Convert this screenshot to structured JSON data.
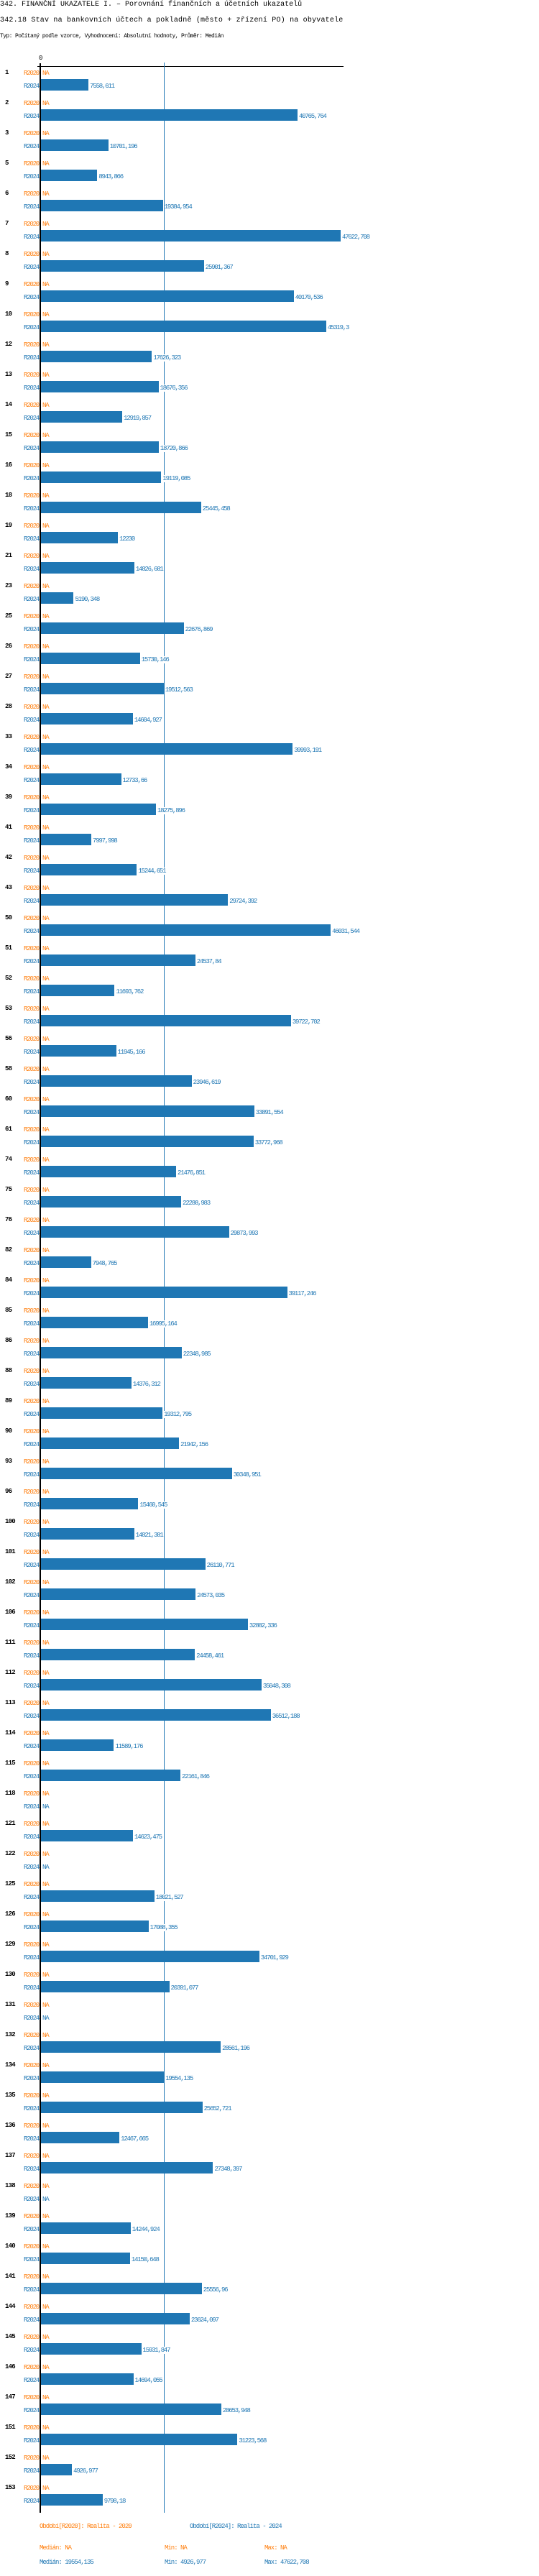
{
  "header": {
    "title": "342. FINANČNÍ UKAZATELE I. – Porovnání finančních a účetních ukazatelů",
    "subtitle": "342.18 Stav na bankovních účtech a pokladně (město + zřízení PO) na obyvatele",
    "type_line": "Typ: Počítaný podle vzorce, Vyhodnocení: Absolutní hodnoty, Průměr: Medián"
  },
  "colors": {
    "r2020": "#ff7f0e",
    "r2024": "#1f77b4",
    "axis": "#000000"
  },
  "chart_data": {
    "type": "bar",
    "orientation": "horizontal",
    "x_tick_labels": [
      "0"
    ],
    "xlim": [
      0,
      47622.708
    ],
    "reference_line": {
      "label": "Medián",
      "value": 19554.135
    },
    "series_names": [
      "R2020",
      "R2024"
    ],
    "na_label": "NA",
    "categories": [
      "1",
      "2",
      "3",
      "5",
      "6",
      "7",
      "8",
      "9",
      "10",
      "12",
      "13",
      "14",
      "15",
      "16",
      "18",
      "19",
      "21",
      "23",
      "25",
      "26",
      "27",
      "28",
      "33",
      "34",
      "39",
      "41",
      "42",
      "43",
      "50",
      "51",
      "52",
      "53",
      "56",
      "58",
      "60",
      "61",
      "74",
      "75",
      "76",
      "82",
      "84",
      "85",
      "86",
      "88",
      "89",
      "90",
      "93",
      "96",
      "100",
      "101",
      "102",
      "106",
      "111",
      "112",
      "113",
      "114",
      "115",
      "118",
      "121",
      "122",
      "125",
      "126",
      "129",
      "130",
      "131",
      "132",
      "134",
      "135",
      "136",
      "137",
      "138",
      "139",
      "140",
      "141",
      "144",
      "145",
      "146",
      "147",
      "151",
      "152",
      "153"
    ],
    "series": [
      {
        "name": "R2020",
        "values": [
          null,
          null,
          null,
          null,
          null,
          null,
          null,
          null,
          null,
          null,
          null,
          null,
          null,
          null,
          null,
          null,
          null,
          null,
          null,
          null,
          null,
          null,
          null,
          null,
          null,
          null,
          null,
          null,
          null,
          null,
          null,
          null,
          null,
          null,
          null,
          null,
          null,
          null,
          null,
          null,
          null,
          null,
          null,
          null,
          null,
          null,
          null,
          null,
          null,
          null,
          null,
          null,
          null,
          null,
          null,
          null,
          null,
          null,
          null,
          null,
          null,
          null,
          null,
          null,
          null,
          null,
          null,
          null,
          null,
          null,
          null,
          null,
          null,
          null,
          null,
          null,
          null,
          null,
          null,
          null,
          null
        ]
      },
      {
        "name": "R2024",
        "values": [
          7558.611,
          40765.764,
          10701.196,
          8943.866,
          19384.954,
          47622.708,
          25901.367,
          40170.536,
          45319.3,
          17626.323,
          18676.356,
          12919.857,
          18720.866,
          19119.085,
          25445.458,
          12230,
          14826.681,
          5190.348,
          22676.869,
          15730.146,
          19512.563,
          14604.927,
          39993.191,
          12733.66,
          18275.896,
          7997.998,
          15244.651,
          29724.392,
          46031.544,
          24537.84,
          11693.762,
          39722.702,
          11945.166,
          23946.619,
          33891.554,
          33772.968,
          21476.851,
          22288.983,
          29873.993,
          7948.765,
          39117.246,
          16995.164,
          22348.985,
          14376.312,
          19312.795,
          21942.156,
          30348.951,
          15460.545,
          14821.381,
          26110.771,
          24573.035,
          32882.336,
          24458.461,
          35048.308,
          36512.188,
          11589.176,
          22161.846,
          null,
          14623.475,
          null,
          18021.527,
          17088.355,
          34701.929,
          20391.077,
          null,
          28561.196,
          19554.135,
          25652.721,
          12467.665,
          27348.397,
          null,
          14244.924,
          14150.648,
          25556.96,
          23624.097,
          15931.847,
          14694.055,
          28653.948,
          31223.568,
          4926.977,
          9798.18
        ]
      }
    ],
    "value_labels": [
      "7558,611",
      "40765,764",
      "10701,196",
      "8943,866",
      "19384,954",
      "47622,708",
      "25901,367",
      "40170,536",
      "45319,3",
      "17626,323",
      "18676,356",
      "12919,857",
      "18720,866",
      "19119,085",
      "25445,458",
      "12230",
      "14826,681",
      "5190,348",
      "22676,869",
      "15730,146",
      "19512,563",
      "14604,927",
      "39993,191",
      "12733,66",
      "18275,896",
      "7997,998",
      "15244,651",
      "29724,392",
      "46031,544",
      "24537,84",
      "11693,762",
      "39722,702",
      "11945,166",
      "23946,619",
      "33891,554",
      "33772,968",
      "21476,851",
      "22288,983",
      "29873,993",
      "7948,765",
      "39117,246",
      "16995,164",
      "22348,985",
      "14376,312",
      "19312,795",
      "21942,156",
      "30348,951",
      "15460,545",
      "14821,381",
      "26110,771",
      "24573,035",
      "32882,336",
      "24458,461",
      "35048,308",
      "36512,188",
      "11589,176",
      "22161,846",
      "NA",
      "14623,475",
      "NA",
      "18021,527",
      "17088,355",
      "34701,929",
      "20391,077",
      "NA",
      "28561,196",
      "19554,135",
      "25652,721",
      "12467,665",
      "27348,397",
      "NA",
      "14244,924",
      "14150,648",
      "25556,96",
      "23624,097",
      "15931,847",
      "14694,055",
      "28653,948",
      "31223,568",
      "4926,977",
      "9798,18"
    ]
  },
  "legend": {
    "r2020": "Období[R2020]: Realita - 2020",
    "r2024": "Období[R2024]: Realita - 2024"
  },
  "stats": {
    "r2020": {
      "median": "Medián: NA",
      "min": "Min: NA",
      "max": "Max: NA"
    },
    "r2024": {
      "median": "Medián: 19554,135",
      "min": "Min: 4926,977",
      "max": "Max: 47622,708"
    }
  }
}
